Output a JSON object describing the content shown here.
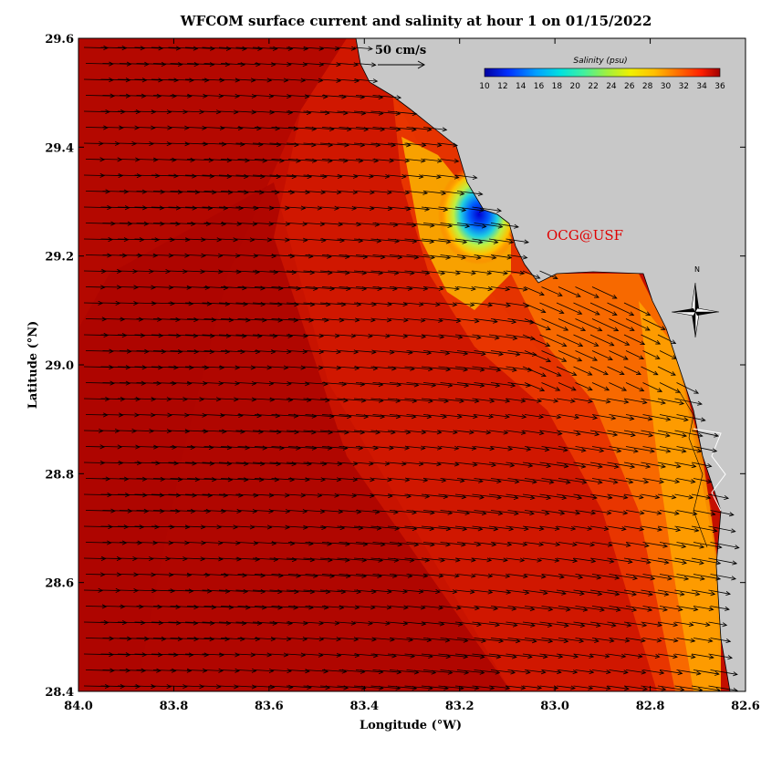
{
  "title": "WFCOM surface current and salinity at hour 1 on 01/15/2022",
  "axes": {
    "xlabel": "Longitude (°W)",
    "ylabel": "Latitude (°N)",
    "x_ticks": [
      "84.0",
      "83.8",
      "83.6",
      "83.4",
      "83.2",
      "83.0",
      "82.8",
      "82.6"
    ],
    "y_ticks": [
      "29.6",
      "29.4",
      "29.2",
      "29.0",
      "28.8",
      "28.6",
      "28.4"
    ],
    "xlim": [
      84.0,
      82.6
    ],
    "ylim": [
      28.4,
      29.6
    ]
  },
  "scale_arrow": {
    "label": "50 cm/s",
    "speed_cm_s": 50
  },
  "colorbar": {
    "title": "Salinity (psu)",
    "ticks": [
      "10",
      "12",
      "14",
      "16",
      "18",
      "20",
      "22",
      "24",
      "26",
      "28",
      "30",
      "32",
      "34",
      "36"
    ],
    "range": [
      10,
      36
    ]
  },
  "watermark": "OCG@USF",
  "compass_label": "N",
  "colors": {
    "land": "#c8c8c8",
    "watermark": "#e00000",
    "high_salinity": "#a00000",
    "low_salinity": "#0000c0"
  }
}
